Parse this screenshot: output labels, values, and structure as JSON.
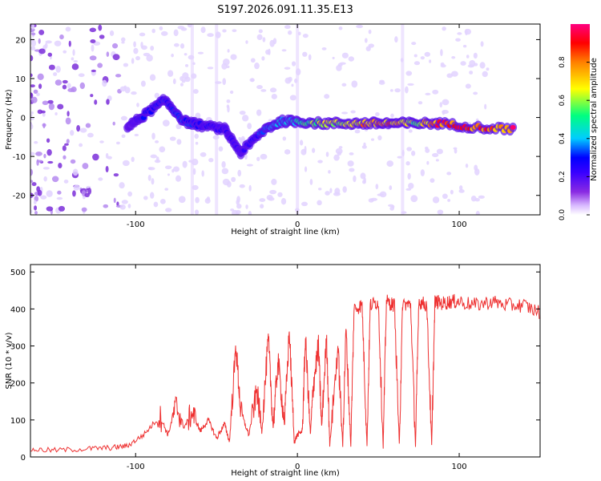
{
  "title": "S197.2026.091.11.35.E13",
  "chart_data": [
    {
      "type": "heatmap",
      "xlabel": "Height of straight line (km)",
      "ylabel": "Frequency (Hz)",
      "xlim": [
        -165,
        150
      ],
      "ylim": [
        -25,
        24
      ],
      "xticks": [
        -100,
        0,
        100
      ],
      "yticks": [
        -20,
        -10,
        0,
        10,
        20
      ],
      "colorbar": {
        "label": "Normalized spectral amplitude",
        "range": [
          0,
          1
        ],
        "ticks": [
          "0.0",
          "0.2",
          "0.4",
          "0.6",
          "0.8"
        ],
        "tick_values": [
          0.0,
          0.2,
          0.4,
          0.6,
          0.8
        ],
        "colors": [
          "#ffffff",
          "#d8b8ff",
          "#8a2be2",
          "#3a00ff",
          "#0000ff",
          "#00ccff",
          "#00ff80",
          "#ffff00",
          "#ff8000",
          "#ff0000",
          "#ff0080"
        ]
      },
      "ridge": [
        {
          "x": -105,
          "y": -2.5,
          "v": 0.15
        },
        {
          "x": -95,
          "y": 0.5,
          "v": 0.3
        },
        {
          "x": -82,
          "y": 4.5,
          "v": 0.3
        },
        {
          "x": -70,
          "y": -1,
          "v": 0.35
        },
        {
          "x": -60,
          "y": -2,
          "v": 0.25
        },
        {
          "x": -45,
          "y": -3,
          "v": 0.25
        },
        {
          "x": -35,
          "y": -9,
          "v": 0.2
        },
        {
          "x": -20,
          "y": -3,
          "v": 0.35
        },
        {
          "x": -10,
          "y": -1,
          "v": 0.45
        },
        {
          "x": 0,
          "y": -1,
          "v": 0.5
        },
        {
          "x": 15,
          "y": -1.5,
          "v": 0.65
        },
        {
          "x": 30,
          "y": -1.5,
          "v": 0.6
        },
        {
          "x": 45,
          "y": -1.5,
          "v": 0.85
        },
        {
          "x": 58,
          "y": -1.5,
          "v": 0.8
        },
        {
          "x": 72,
          "y": -1.5,
          "v": 0.6
        },
        {
          "x": 88,
          "y": -1.5,
          "v": 0.9
        },
        {
          "x": 110,
          "y": -2.5,
          "v": 0.85
        },
        {
          "x": 135,
          "y": -3,
          "v": 0.9
        }
      ]
    },
    {
      "type": "line",
      "xlabel": "Height of straight line (km)",
      "ylabel": "SNR (10 * v/v)",
      "xlim": [
        -165,
        150
      ],
      "ylim": [
        0,
        520
      ],
      "xticks": [
        -100,
        0,
        100
      ],
      "yticks": [
        0,
        100,
        200,
        300,
        400,
        500
      ],
      "color": "#ee3030",
      "series": [
        {
          "name": "SNR",
          "x": [
            -165,
            -150,
            -130,
            -115,
            -105,
            -95,
            -85,
            -80,
            -75,
            -70,
            -65,
            -60,
            -55,
            -50,
            -45,
            -42,
            -38,
            -35,
            -30,
            -25,
            -22,
            -18,
            -15,
            -12,
            -8,
            -5,
            -2,
            0,
            3,
            5,
            8,
            10,
            13,
            15,
            18,
            20,
            25,
            28,
            30,
            33,
            35,
            40,
            43,
            45,
            50,
            53,
            55,
            60,
            63,
            65,
            70,
            73,
            75,
            80,
            83,
            85,
            90,
            95,
            100,
            110,
            120,
            130,
            140,
            150
          ],
          "y": [
            20,
            18,
            22,
            25,
            30,
            60,
            110,
            60,
            140,
            80,
            120,
            70,
            100,
            50,
            90,
            40,
            300,
            120,
            60,
            180,
            70,
            320,
            80,
            260,
            90,
            340,
            40,
            60,
            70,
            320,
            60,
            200,
            300,
            80,
            330,
            30,
            300,
            30,
            350,
            30,
            400,
            410,
            30,
            410,
            420,
            30,
            420,
            410,
            30,
            415,
            410,
            30,
            420,
            410,
            30,
            420,
            415,
            420,
            420,
            410,
            420,
            410,
            410,
            390
          ]
        }
      ]
    }
  ]
}
